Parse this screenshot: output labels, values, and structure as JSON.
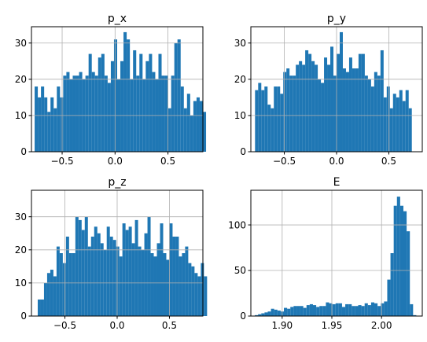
{
  "figure": {
    "background": "#ffffff",
    "bar_color": "#1f77b4",
    "grid_color": "#b0b0b0"
  },
  "chart_data": [
    {
      "type": "bar",
      "title": "p_x",
      "xlabel": "",
      "ylabel": "",
      "grid": true,
      "xlim": [
        -0.79,
        0.83
      ],
      "ylim": [
        0,
        34.5
      ],
      "xticks": [
        -0.5,
        0.0,
        0.5
      ],
      "xtick_labels": [
        "−0.5",
        "0.0",
        "0.5"
      ],
      "yticks": [
        0,
        10,
        20,
        30
      ],
      "ytick_labels": [
        "0",
        "10",
        "20",
        "30"
      ],
      "bin_start": -0.76,
      "bin_width": 0.03,
      "values": [
        18,
        15,
        18,
        15,
        11,
        15,
        12,
        18,
        15,
        21,
        22,
        20,
        21,
        21,
        22,
        20,
        21,
        27,
        22,
        21,
        26,
        27,
        21,
        19,
        25,
        31,
        20,
        25,
        33,
        31,
        20,
        28,
        21,
        27,
        20,
        25,
        27,
        22,
        20,
        27,
        21,
        21,
        12,
        21,
        30,
        31,
        18,
        12,
        16,
        10,
        14,
        15,
        14,
        11
      ]
    },
    {
      "type": "bar",
      "title": "p_y",
      "xlabel": "",
      "ylabel": "",
      "grid": true,
      "xlim": [
        -0.82,
        0.82
      ],
      "ylim": [
        0,
        34.5
      ],
      "xticks": [
        -0.5,
        0.0,
        0.5
      ],
      "xtick_labels": [
        "−0.5",
        "0.0",
        "0.5"
      ],
      "yticks": [
        0,
        10,
        20,
        30
      ],
      "ytick_labels": [
        "0",
        "10",
        "20",
        "30"
      ],
      "bin_start": -0.78,
      "bin_width": 0.03,
      "values": [
        17,
        19,
        17,
        18,
        13,
        12,
        18,
        18,
        16,
        22,
        23,
        21,
        21,
        24,
        25,
        24,
        28,
        27,
        25,
        24,
        20,
        19,
        26,
        24,
        29,
        21,
        27,
        33,
        23,
        22,
        26,
        23,
        23,
        27,
        27,
        21,
        20,
        18,
        22,
        21,
        28,
        15,
        18,
        12,
        16,
        15,
        17,
        14,
        17,
        12
      ]
    },
    {
      "type": "bar",
      "title": "p_z",
      "xlabel": "",
      "ylabel": "",
      "grid": true,
      "xlim": [
        -0.82,
        0.82
      ],
      "ylim": [
        0,
        38.0
      ],
      "xticks": [
        -0.5,
        0.0,
        0.5
      ],
      "xtick_labels": [
        "−0.5",
        "0.0",
        "0.5"
      ],
      "yticks": [
        0,
        10,
        20,
        30
      ],
      "ytick_labels": [
        "0",
        "10",
        "20",
        "30"
      ],
      "bin_start": -0.76,
      "bin_width": 0.03,
      "values": [
        5,
        5,
        10,
        13,
        14,
        12,
        21,
        19,
        16,
        24,
        19,
        19,
        30,
        29,
        26,
        30,
        21,
        24,
        27,
        25,
        22,
        20,
        27,
        24,
        23,
        21,
        18,
        28,
        26,
        27,
        22,
        29,
        21,
        20,
        25,
        30,
        19,
        18,
        22,
        28,
        19,
        17,
        28,
        24,
        24,
        18,
        19,
        21,
        16,
        15,
        13,
        12,
        16,
        12
      ]
    },
    {
      "type": "bar",
      "title": "E",
      "xlabel": "",
      "ylabel": "",
      "grid": true,
      "xlim": [
        1.8685,
        2.041
      ],
      "ylim": [
        0,
        138
      ],
      "xticks": [
        1.9,
        1.95,
        2.0
      ],
      "xtick_labels": [
        "1.90",
        "1.95",
        "2.00"
      ],
      "yticks": [
        0,
        50,
        100
      ],
      "ytick_labels": [
        "0",
        "50",
        "100"
      ],
      "bin_start": 1.8725,
      "bin_width": 0.00325,
      "values": [
        1,
        2,
        3,
        4,
        5,
        8,
        7,
        6,
        5,
        9,
        8,
        10,
        11,
        11,
        11,
        9,
        12,
        13,
        12,
        10,
        11,
        11,
        15,
        14,
        13,
        14,
        14,
        10,
        13,
        13,
        11,
        11,
        12,
        11,
        14,
        12,
        15,
        14,
        11,
        14,
        16,
        40,
        69,
        121,
        131,
        121,
        115,
        93,
        13,
        1
      ]
    }
  ]
}
